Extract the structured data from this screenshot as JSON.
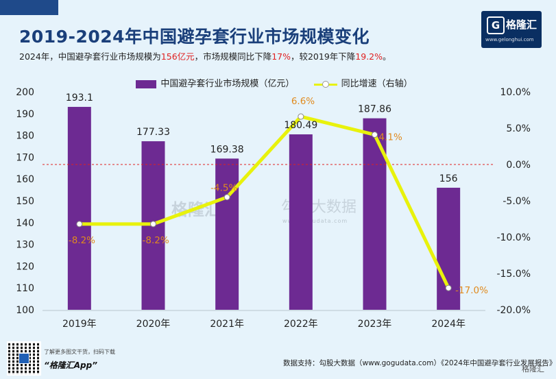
{
  "header": {
    "title": "2019-2024年中国避孕套行业市场规模变化",
    "subtitle_parts": [
      "2024年，中国避孕套行业市场规模为",
      "156亿元",
      "，市场规模同比下降",
      "17%",
      "，较2019年下降",
      "19.2%",
      "。"
    ]
  },
  "logo": {
    "mark": "G",
    "name": "格隆汇",
    "url": "www.gelonghui.com"
  },
  "watermark": {
    "left": "格隆汇",
    "right": "勾股大数据",
    "right_url": "www.gogudata.com"
  },
  "footer": {
    "app_hint": "了解更多图文干货，扫码下载",
    "app_name": "“格隆汇App”",
    "source": "数据支持：勾股大数据（www.gogudata.com）《2024年中国避孕套行业发展报告》",
    "brand": "格隆汇"
  },
  "colors": {
    "bar": "#6d2a92",
    "line": "#e8f20c",
    "line_label": "#e08a1e",
    "zero_line": "#e02020",
    "title": "#1a3f7a"
  },
  "chart_data": {
    "type": "bar",
    "categories": [
      "2019年",
      "2020年",
      "2021年",
      "2022年",
      "2023年",
      "2024年"
    ],
    "series": [
      {
        "name": "中国避孕套行业市场规模（亿元）",
        "type": "bar",
        "axis": "left",
        "values": [
          193.1,
          177.33,
          169.38,
          180.49,
          187.86,
          156
        ],
        "labels": [
          "193.1",
          "177.33",
          "169.38",
          "180.49",
          "187.86",
          "156"
        ]
      },
      {
        "name": "同比增速（右轴）",
        "type": "line",
        "axis": "right",
        "values": [
          -8.2,
          -8.2,
          -4.5,
          6.6,
          4.1,
          -17.0
        ],
        "labels": [
          "-8.2%",
          "-8.2%",
          "-4.5%",
          "6.6%",
          "4.1%",
          "-17.0%"
        ]
      }
    ],
    "y_left": {
      "min": 100,
      "max": 200,
      "ticks": [
        "100",
        "110",
        "120",
        "130",
        "140",
        "150",
        "160",
        "170",
        "180",
        "190",
        "200"
      ]
    },
    "y_right": {
      "min": -20,
      "max": 10,
      "ticks": [
        "-20.0%",
        "-15.0%",
        "-10.0%",
        "-5.0%",
        "0.0%",
        "5.0%",
        "10.0%"
      ]
    },
    "legend_position": "top-center",
    "grid": false,
    "reference_line": {
      "axis": "right",
      "value": 0,
      "style": "dashed"
    }
  }
}
